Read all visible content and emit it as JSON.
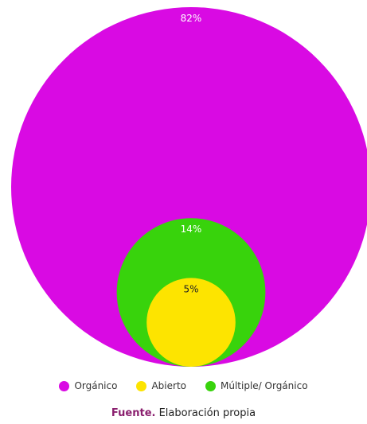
{
  "chart_data": {
    "type": "nested-bubble",
    "series": [
      {
        "name": "Orgánico",
        "value": 82,
        "label": "82%",
        "color": "#d90ae3"
      },
      {
        "name": "Múltiple/ Orgánico",
        "value": 14,
        "label": "14%",
        "color": "#38d30c"
      },
      {
        "name": "Abierto",
        "value": 5,
        "label": "5%",
        "color": "#fde400"
      }
    ],
    "legend_order": [
      "Orgánico",
      "Abierto",
      "Múltiple/ Orgánico"
    ],
    "legend_position": "bottom"
  },
  "source": {
    "label": "Fuente.",
    "text": " Elaboración propia"
  }
}
